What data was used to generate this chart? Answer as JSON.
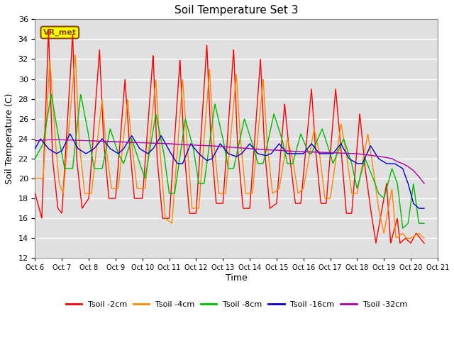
{
  "title": "Soil Temperature Set 3",
  "xlabel": "Time",
  "ylabel": "Soil Temperature (C)",
  "ylim": [
    12,
    36
  ],
  "yticks": [
    12,
    14,
    16,
    18,
    20,
    22,
    24,
    26,
    28,
    30,
    32,
    34,
    36
  ],
  "x_labels": [
    "Oct 6",
    "Oct 7",
    "Oct 8",
    "Oct 9",
    "Oct 10",
    "Oct 11",
    "Oct 12",
    "Oct 13",
    "Oct 14",
    "Oct 15",
    "Oct 16",
    "Oct 17",
    "Oct 18",
    "Oct 19",
    "Oct 20",
    "Oct 21"
  ],
  "colors": {
    "tsoil_2cm": "#ff0000",
    "tsoil_4cm": "#ff8800",
    "tsoil_8cm": "#00bb00",
    "tsoil_16cm": "#0000cc",
    "tsoil_32cm": "#aa00aa"
  },
  "legend_labels": [
    "Tsoil -2cm",
    "Tsoil -4cm",
    "Tsoil -8cm",
    "Tsoil -16cm",
    "Tsoil -32cm"
  ],
  "background_color": "#e0e0e0",
  "label_box": "VR_met",
  "label_box_color": "#ffff00",
  "label_box_text_color": "#8B4513"
}
